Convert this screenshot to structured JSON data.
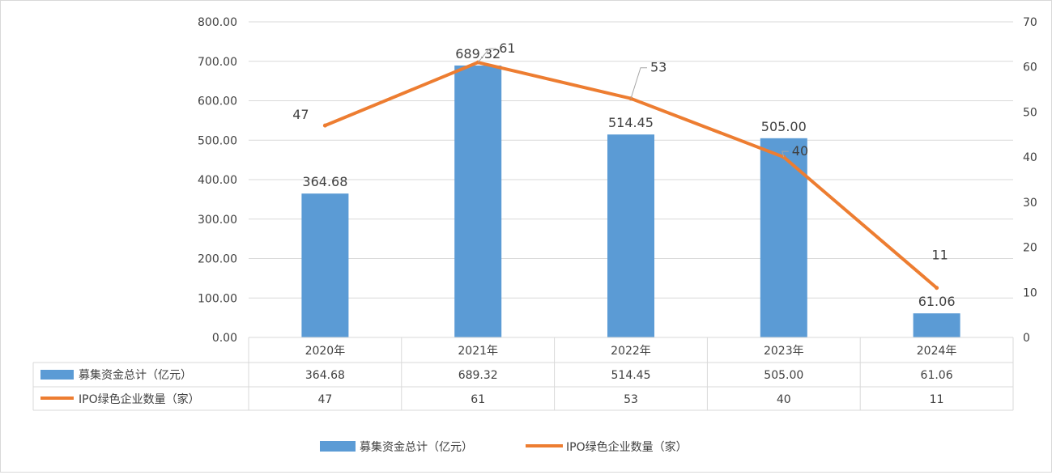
{
  "chart_data": {
    "type": "bar+line",
    "categories": [
      "2020年",
      "2021年",
      "2022年",
      "2023年",
      "2024年"
    ],
    "series": [
      {
        "name": "募集资金总计（亿元）",
        "type": "bar",
        "axis": "left",
        "values": [
          364.68,
          689.32,
          514.45,
          505.0,
          61.06
        ],
        "labels": [
          "364.68",
          "689.32",
          "514.45",
          "505.00",
          "61.06"
        ],
        "color": "#5b9bd5"
      },
      {
        "name": "IPO绿色企业数量（家）",
        "type": "line",
        "axis": "right",
        "values": [
          47,
          61,
          53,
          40,
          11
        ],
        "labels": [
          "47",
          "61",
          "53",
          "40",
          "11"
        ],
        "color": "#ed7d31"
      }
    ],
    "y_left": {
      "min": 0,
      "max": 800,
      "step": 100,
      "tick_labels": [
        "0.00",
        "100.00",
        "200.00",
        "300.00",
        "400.00",
        "500.00",
        "600.00",
        "700.00",
        "800.00"
      ]
    },
    "y_right": {
      "min": 0,
      "max": 70,
      "step": 10,
      "tick_labels": [
        "0",
        "10",
        "20",
        "30",
        "40",
        "50",
        "60",
        "70"
      ]
    },
    "grid": true,
    "data_table": true,
    "legend_position": "bottom",
    "title": "",
    "xlabel": "",
    "ylabel": ""
  }
}
